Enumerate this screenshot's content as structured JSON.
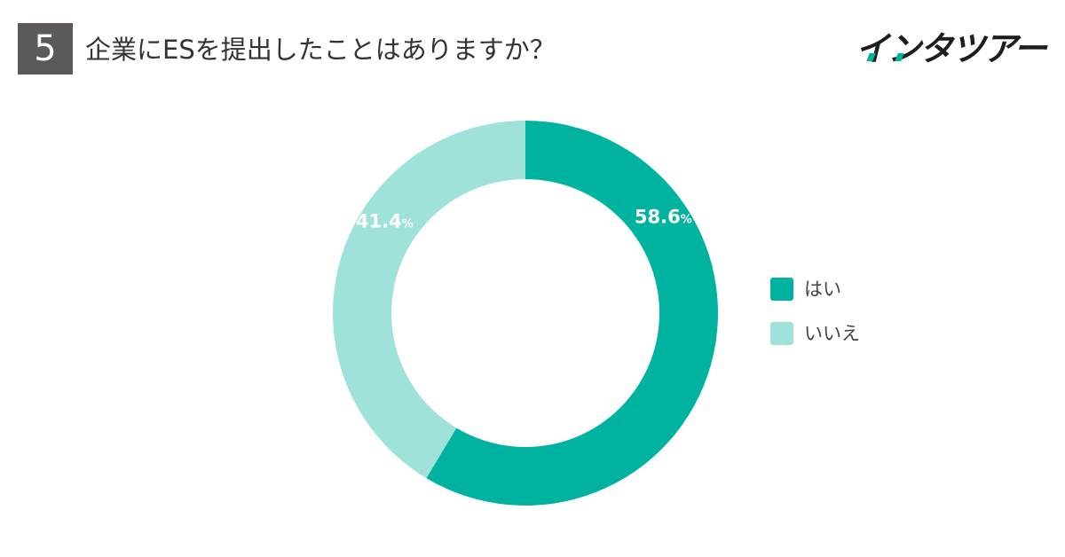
{
  "header": {
    "number": "5",
    "title": "企業にESを提出したことはありますか？"
  },
  "logo": {
    "text": "インタツアー"
  },
  "colors": {
    "hai": "#00b3a0",
    "iie": "#9ee2d9",
    "badge": "#5d5959"
  },
  "chart_data": {
    "type": "pie",
    "donut": true,
    "title": "企業にESを提出したことはありますか？",
    "legend_position": "right",
    "unit": "%",
    "slices": [
      {
        "label": "はい",
        "value": 58.6,
        "value_text": "58.6",
        "color": "#00b3a0"
      },
      {
        "label": "いいえ",
        "value": 41.4,
        "value_text": "41.4",
        "color": "#9ee2d9"
      }
    ]
  }
}
